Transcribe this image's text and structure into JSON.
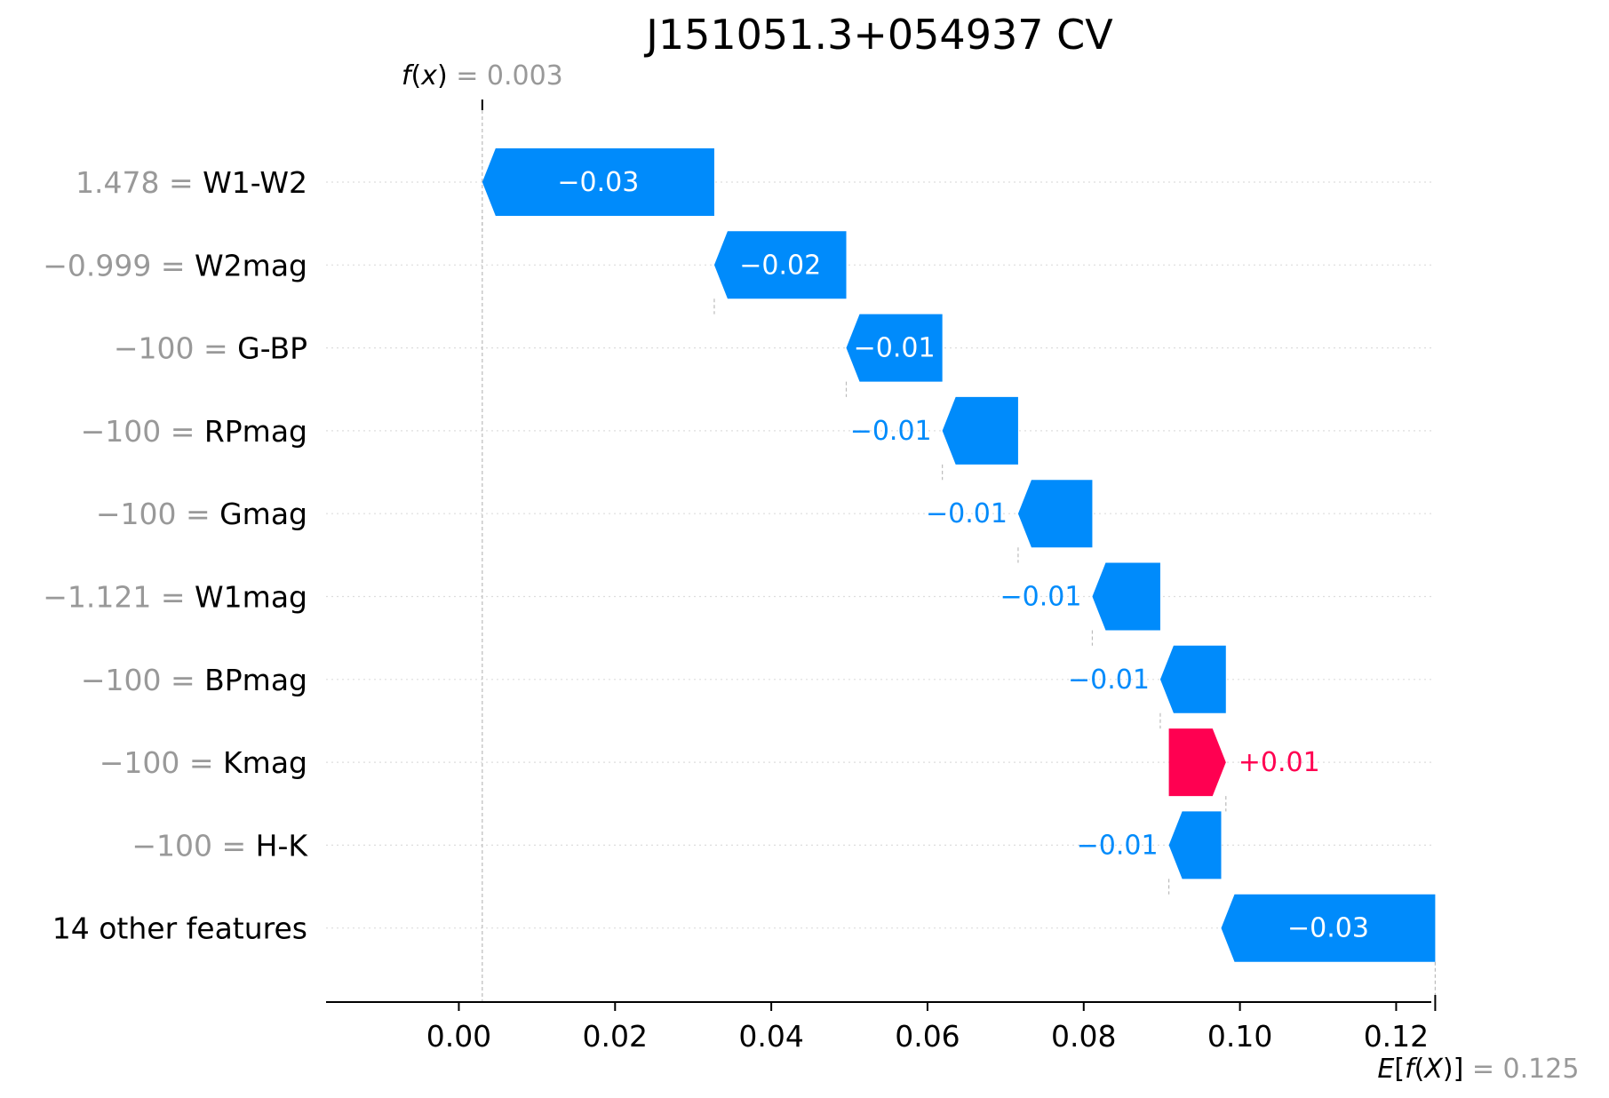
{
  "chart_data": {
    "type": "waterfall",
    "title": "J151051.3+054937 CV",
    "base_value": 0.125,
    "base_value_label": "0.125",
    "output_value": 0.003,
    "output_value_label": "0.003",
    "xlim": [
      -0.017,
      0.1245
    ],
    "x_ticks": [
      0.0,
      0.02,
      0.04,
      0.06,
      0.08,
      0.1,
      0.12
    ],
    "x_tick_labels": [
      "0.00",
      "0.02",
      "0.04",
      "0.06",
      "0.08",
      "0.10",
      "0.12"
    ],
    "grid": "dotted horizontal rows",
    "colors": {
      "negative": "#008bfb",
      "positive": "#ff0051",
      "muted_text": "#999999",
      "guide": "#bbbbbb"
    },
    "features": [
      {
        "value": "1.478",
        "name": "W1-W2",
        "start": 0.0327,
        "end": 0.003,
        "label": "−0.03"
      },
      {
        "value": "−0.999",
        "name": "W2mag",
        "start": 0.0496,
        "end": 0.0327,
        "label": "−0.02"
      },
      {
        "value": "−100",
        "name": "G-BP",
        "start": 0.0619,
        "end": 0.0496,
        "label": "−0.01"
      },
      {
        "value": "−100",
        "name": "RPmag",
        "start": 0.0716,
        "end": 0.0619,
        "label": "−0.01"
      },
      {
        "value": "−100",
        "name": "Gmag",
        "start": 0.0811,
        "end": 0.0716,
        "label": "−0.01"
      },
      {
        "value": "−1.121",
        "name": "W1mag",
        "start": 0.0898,
        "end": 0.0811,
        "label": "−0.01"
      },
      {
        "value": "−100",
        "name": "BPmag",
        "start": 0.0982,
        "end": 0.0898,
        "label": "−0.01"
      },
      {
        "value": "−100",
        "name": "Kmag",
        "start": 0.0909,
        "end": 0.0982,
        "label": "+0.01"
      },
      {
        "value": "−100",
        "name": "H-K",
        "start": 0.0976,
        "end": 0.0909,
        "label": "−0.01"
      },
      {
        "value": "",
        "name": "14 other features",
        "start": 0.125,
        "end": 0.0976,
        "label": "−0.03"
      }
    ]
  }
}
